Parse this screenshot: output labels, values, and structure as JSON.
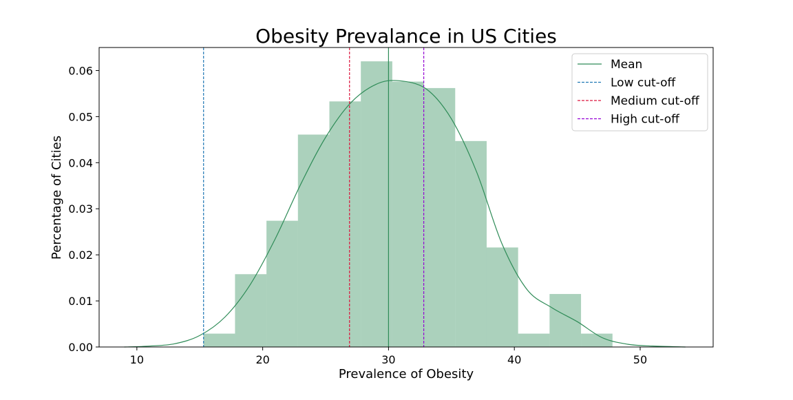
{
  "chart_data": {
    "type": "bar",
    "title": "Obesity Prevalance in US Cities",
    "xlabel": "Prevalence of Obesity",
    "ylabel": "Percentage of Cities",
    "xlim": [
      7.0,
      55.8
    ],
    "ylim": [
      0.0,
      0.065
    ],
    "xticks": [
      10,
      20,
      30,
      40,
      50
    ],
    "yticks": [
      0.0,
      0.01,
      0.02,
      0.03,
      0.04,
      0.05,
      0.06
    ],
    "ytick_labels": [
      "0.00",
      "0.01",
      "0.02",
      "0.03",
      "0.04",
      "0.05",
      "0.06"
    ],
    "grid": false,
    "legend_position": "top-right",
    "histogram": {
      "color": "#2e8b57",
      "bins": [
        {
          "x0": 15.3,
          "x1": 17.8,
          "value": 0.0029
        },
        {
          "x0": 17.8,
          "x1": 20.3,
          "value": 0.0158
        },
        {
          "x0": 20.3,
          "x1": 22.8,
          "value": 0.0274
        },
        {
          "x0": 22.8,
          "x1": 25.3,
          "value": 0.0461
        },
        {
          "x0": 25.3,
          "x1": 27.8,
          "value": 0.0533
        },
        {
          "x0": 27.8,
          "x1": 30.3,
          "value": 0.062
        },
        {
          "x0": 30.3,
          "x1": 32.8,
          "value": 0.0576
        },
        {
          "x0": 32.8,
          "x1": 35.3,
          "value": 0.0562
        },
        {
          "x0": 35.3,
          "x1": 37.8,
          "value": 0.0447
        },
        {
          "x0": 37.8,
          "x1": 40.3,
          "value": 0.0216
        },
        {
          "x0": 40.3,
          "x1": 42.8,
          "value": 0.0029
        },
        {
          "x0": 42.8,
          "x1": 45.3,
          "value": 0.0115
        },
        {
          "x0": 45.3,
          "x1": 47.8,
          "value": 0.0029
        }
      ]
    },
    "kde": {
      "color": "#2e8b57",
      "x": [
        9.0,
        11.0,
        13.0,
        15.0,
        17.0,
        19.0,
        21.0,
        23.0,
        25.0,
        27.0,
        29.0,
        30.8,
        33.0,
        35.0,
        37.0,
        39.0,
        41.0,
        43.0,
        45.0,
        47.0,
        49.0,
        51.0,
        53.6
      ],
      "y": [
        0.0,
        0.0002,
        0.0007,
        0.0025,
        0.0065,
        0.0135,
        0.0235,
        0.0352,
        0.0455,
        0.053,
        0.057,
        0.0578,
        0.056,
        0.0495,
        0.038,
        0.0225,
        0.0125,
        0.0085,
        0.0055,
        0.002,
        0.0006,
        0.0002,
        0.0
      ]
    },
    "vlines": [
      {
        "name": "Mean",
        "x": 30.0,
        "color": "#2e8b57",
        "style": "solid"
      },
      {
        "name": "Low cut-off",
        "x": 15.3,
        "color": "#1f77b4",
        "style": "dashed"
      },
      {
        "name": "Medium cut-off",
        "x": 26.9,
        "color": "#dc143c",
        "style": "dashed"
      },
      {
        "name": "High cut-off",
        "x": 32.8,
        "color": "#9400d3",
        "style": "dashed"
      }
    ]
  }
}
